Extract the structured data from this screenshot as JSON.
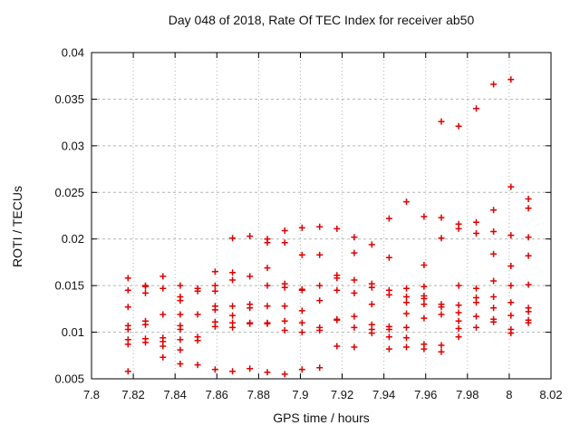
{
  "chart_data": {
    "type": "scatter",
    "title": "Day 048 of 2018, Rate Of TEC Index for receiver ab50",
    "xlabel": "GPS time / hours",
    "ylabel": "ROTI / TECUs",
    "xlim": [
      7.8,
      8.02
    ],
    "ylim": [
      0.005,
      0.04
    ],
    "xticks": {
      "values": [
        7.8,
        7.82,
        7.84,
        7.86,
        7.88,
        7.9,
        7.92,
        7.94,
        7.96,
        7.98,
        8.0,
        8.02
      ],
      "labels": [
        "7.8",
        "7.82",
        "7.84",
        "7.86",
        "7.88",
        "7.9",
        "7.92",
        "7.94",
        "7.96",
        "7.98",
        "8",
        "8.02"
      ]
    },
    "yticks": {
      "values": [
        0.005,
        0.01,
        0.015,
        0.02,
        0.025,
        0.03,
        0.035,
        0.04
      ],
      "labels": [
        "0.005",
        "0.01",
        "0.015",
        "0.02",
        "0.025",
        "0.03",
        "0.035",
        "0.04"
      ]
    },
    "grid": true,
    "legend": "none",
    "marker": "plus",
    "colors": {
      "marker": "#e10000",
      "grid": "#b3b3b3",
      "frame": "#000000",
      "background": "#ffffff"
    },
    "series": [
      {
        "name": "ROTI",
        "points": [
          [
            7.8175,
            0.0158
          ],
          [
            7.8175,
            0.0145
          ],
          [
            7.8175,
            0.0127
          ],
          [
            7.8175,
            0.0107
          ],
          [
            7.8175,
            0.0103
          ],
          [
            7.8175,
            0.0092
          ],
          [
            7.8175,
            0.0087
          ],
          [
            7.8175,
            0.0058
          ],
          [
            7.8258,
            0.015
          ],
          [
            7.8258,
            0.0149
          ],
          [
            7.8258,
            0.0142
          ],
          [
            7.8258,
            0.0112
          ],
          [
            7.8258,
            0.0108
          ],
          [
            7.8258,
            0.0093
          ],
          [
            7.8258,
            0.0089
          ],
          [
            7.8342,
            0.016
          ],
          [
            7.8342,
            0.0147
          ],
          [
            7.8342,
            0.0119
          ],
          [
            7.8342,
            0.0094
          ],
          [
            7.8342,
            0.009
          ],
          [
            7.8342,
            0.0085
          ],
          [
            7.8342,
            0.0073
          ],
          [
            7.8425,
            0.015
          ],
          [
            7.8425,
            0.0138
          ],
          [
            7.8425,
            0.0134
          ],
          [
            7.8425,
            0.0119
          ],
          [
            7.8425,
            0.0107
          ],
          [
            7.8425,
            0.0103
          ],
          [
            7.8425,
            0.0092
          ],
          [
            7.8425,
            0.0081
          ],
          [
            7.8425,
            0.0066
          ],
          [
            7.8508,
            0.0147
          ],
          [
            7.8508,
            0.0144
          ],
          [
            7.8508,
            0.0119
          ],
          [
            7.8508,
            0.0095
          ],
          [
            7.8508,
            0.0091
          ],
          [
            7.8508,
            0.0065
          ],
          [
            7.8592,
            0.0165
          ],
          [
            7.8592,
            0.015
          ],
          [
            7.8592,
            0.0144
          ],
          [
            7.8592,
            0.0128
          ],
          [
            7.8592,
            0.0124
          ],
          [
            7.8592,
            0.0111
          ],
          [
            7.8592,
            0.0106
          ],
          [
            7.8592,
            0.006
          ],
          [
            7.8675,
            0.0201
          ],
          [
            7.8675,
            0.0164
          ],
          [
            7.8675,
            0.0156
          ],
          [
            7.8675,
            0.0128
          ],
          [
            7.8675,
            0.0118
          ],
          [
            7.8675,
            0.011
          ],
          [
            7.8675,
            0.0105
          ],
          [
            7.8675,
            0.0058
          ],
          [
            7.8758,
            0.0203
          ],
          [
            7.8758,
            0.016
          ],
          [
            7.8758,
            0.013
          ],
          [
            7.8758,
            0.0126
          ],
          [
            7.8758,
            0.011
          ],
          [
            7.8758,
            0.0109
          ],
          [
            7.8758,
            0.0061
          ],
          [
            7.8842,
            0.02
          ],
          [
            7.8842,
            0.0196
          ],
          [
            7.8842,
            0.0169
          ],
          [
            7.8842,
            0.015
          ],
          [
            7.8842,
            0.0128
          ],
          [
            7.8842,
            0.011
          ],
          [
            7.8842,
            0.0109
          ],
          [
            7.8842,
            0.0057
          ],
          [
            7.8925,
            0.0209
          ],
          [
            7.8925,
            0.0196
          ],
          [
            7.8925,
            0.0152
          ],
          [
            7.8925,
            0.0148
          ],
          [
            7.8925,
            0.0128
          ],
          [
            7.8925,
            0.0112
          ],
          [
            7.8925,
            0.0102
          ],
          [
            7.8925,
            0.0055
          ],
          [
            7.9008,
            0.0212
          ],
          [
            7.9008,
            0.0183
          ],
          [
            7.9008,
            0.0146
          ],
          [
            7.9008,
            0.0145
          ],
          [
            7.9008,
            0.0123
          ],
          [
            7.9008,
            0.011
          ],
          [
            7.9008,
            0.01
          ],
          [
            7.9008,
            0.006
          ],
          [
            7.9092,
            0.0213
          ],
          [
            7.9092,
            0.0183
          ],
          [
            7.9092,
            0.015
          ],
          [
            7.9092,
            0.0134
          ],
          [
            7.9092,
            0.0105
          ],
          [
            7.9092,
            0.0102
          ],
          [
            7.9092,
            0.0062
          ],
          [
            7.9175,
            0.0211
          ],
          [
            7.9175,
            0.0161
          ],
          [
            7.9175,
            0.0158
          ],
          [
            7.9175,
            0.0145
          ],
          [
            7.9175,
            0.0114
          ],
          [
            7.9175,
            0.0113
          ],
          [
            7.9175,
            0.0085
          ],
          [
            7.9258,
            0.0202
          ],
          [
            7.9258,
            0.0185
          ],
          [
            7.9258,
            0.0156
          ],
          [
            7.9258,
            0.0142
          ],
          [
            7.9258,
            0.0117
          ],
          [
            7.9258,
            0.0105
          ],
          [
            7.9258,
            0.0084
          ],
          [
            7.9342,
            0.0194
          ],
          [
            7.9342,
            0.0152
          ],
          [
            7.9342,
            0.0148
          ],
          [
            7.9342,
            0.013
          ],
          [
            7.9342,
            0.0108
          ],
          [
            7.9342,
            0.0103
          ],
          [
            7.9342,
            0.0099
          ],
          [
            7.9425,
            0.0222
          ],
          [
            7.9425,
            0.018
          ],
          [
            7.9425,
            0.0145
          ],
          [
            7.9425,
            0.014
          ],
          [
            7.9425,
            0.0106
          ],
          [
            7.9425,
            0.0103
          ],
          [
            7.9425,
            0.0095
          ],
          [
            7.9425,
            0.0082
          ],
          [
            7.9508,
            0.024
          ],
          [
            7.9508,
            0.0147
          ],
          [
            7.9508,
            0.0138
          ],
          [
            7.9508,
            0.0132
          ],
          [
            7.9508,
            0.012
          ],
          [
            7.9508,
            0.0105
          ],
          [
            7.9508,
            0.0094
          ],
          [
            7.9508,
            0.0084
          ],
          [
            7.9592,
            0.0224
          ],
          [
            7.9592,
            0.0172
          ],
          [
            7.9592,
            0.0149
          ],
          [
            7.9592,
            0.0139
          ],
          [
            7.9592,
            0.0136
          ],
          [
            7.9592,
            0.013
          ],
          [
            7.9592,
            0.0115
          ],
          [
            7.9592,
            0.0087
          ],
          [
            7.9592,
            0.0082
          ],
          [
            7.9675,
            0.0326
          ],
          [
            7.9675,
            0.0223
          ],
          [
            7.9675,
            0.0201
          ],
          [
            7.9675,
            0.013
          ],
          [
            7.9675,
            0.0127
          ],
          [
            7.9675,
            0.0119
          ],
          [
            7.9675,
            0.0086
          ],
          [
            7.9675,
            0.0079
          ],
          [
            7.9758,
            0.0321
          ],
          [
            7.9758,
            0.0216
          ],
          [
            7.9758,
            0.0211
          ],
          [
            7.9758,
            0.015
          ],
          [
            7.9758,
            0.0129
          ],
          [
            7.9758,
            0.0121
          ],
          [
            7.9758,
            0.0112
          ],
          [
            7.9758,
            0.0104
          ],
          [
            7.9758,
            0.0095
          ],
          [
            7.9842,
            0.034
          ],
          [
            7.9842,
            0.0218
          ],
          [
            7.9842,
            0.0206
          ],
          [
            7.9842,
            0.0147
          ],
          [
            7.9842,
            0.0137
          ],
          [
            7.9842,
            0.0132
          ],
          [
            7.9842,
            0.0117
          ],
          [
            7.9842,
            0.0105
          ],
          [
            7.9925,
            0.0366
          ],
          [
            7.9925,
            0.0231
          ],
          [
            7.9925,
            0.0208
          ],
          [
            7.9925,
            0.0184
          ],
          [
            7.9925,
            0.0155
          ],
          [
            7.9925,
            0.0138
          ],
          [
            7.9925,
            0.0126
          ],
          [
            7.9925,
            0.0114
          ],
          [
            7.9925,
            0.0111
          ],
          [
            8.0008,
            0.0371
          ],
          [
            8.0008,
            0.0256
          ],
          [
            8.0008,
            0.0204
          ],
          [
            8.0008,
            0.0171
          ],
          [
            8.0008,
            0.015
          ],
          [
            8.0008,
            0.0132
          ],
          [
            8.0008,
            0.0118
          ],
          [
            8.0008,
            0.0103
          ],
          [
            8.0008,
            0.0099
          ],
          [
            8.0092,
            0.0243
          ],
          [
            8.0092,
            0.0233
          ],
          [
            8.0092,
            0.0202
          ],
          [
            8.0092,
            0.0182
          ],
          [
            8.0092,
            0.0151
          ],
          [
            8.0092,
            0.0126
          ],
          [
            8.0092,
            0.0122
          ],
          [
            8.0092,
            0.0113
          ],
          [
            8.0092,
            0.011
          ]
        ]
      }
    ]
  }
}
